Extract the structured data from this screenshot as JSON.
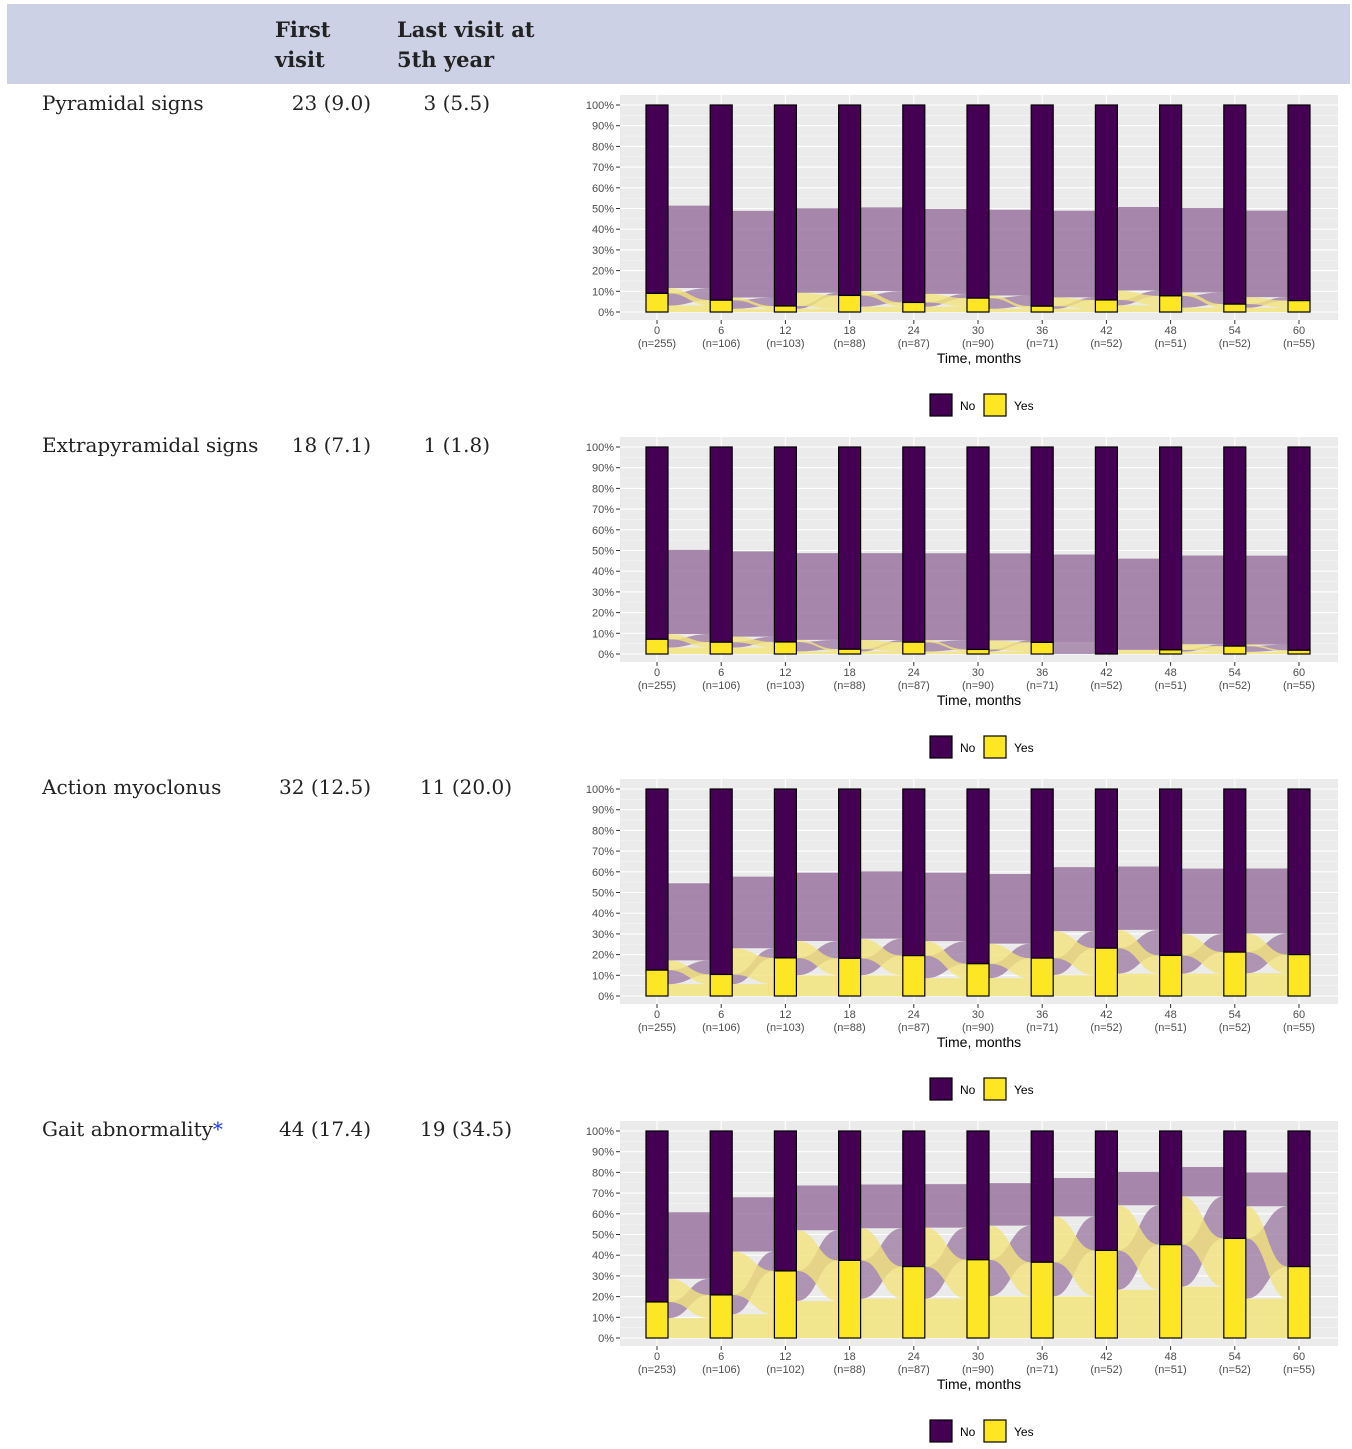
{
  "header": {
    "col1": "First visit",
    "col1_line1": "First",
    "col1_line2": "visit",
    "col2": "Last visit at 5th year",
    "col2_line1": "Last visit at",
    "col2_line2": "5th year"
  },
  "rows": [
    {
      "label": "Pyramidal signs",
      "asterisk": "",
      "first": "23 (9.0)",
      "last": "3 (5.5)"
    },
    {
      "label": "Extrapyramidal signs",
      "asterisk": "",
      "first": "18 (7.1)",
      "last": "1 (1.8)"
    },
    {
      "label": "Action myoclonus",
      "asterisk": "",
      "first": "32 (12.5)",
      "last": "11 (20.0)"
    },
    {
      "label": "Gait abnormality",
      "asterisk": "*",
      "first": "44 (17.4)",
      "last": "19 (34.5)"
    }
  ],
  "colors": {
    "no": "#440154",
    "yes": "#fde725",
    "no_flow": "#9a76a0",
    "yes_flow": "#f2e47d",
    "panel": "#ebebeb",
    "header_bg": "#cdd1e5"
  },
  "chart_data": [
    {
      "type": "bar",
      "stacked": true,
      "flows": true,
      "title": "",
      "xlabel": "Time, months",
      "ylabel": "",
      "ylim": [
        0,
        100
      ],
      "y_ticks": [
        "0%",
        "10%",
        "20%",
        "30%",
        "40%",
        "50%",
        "60%",
        "70%",
        "80%",
        "90%",
        "100%"
      ],
      "categories": [
        "0",
        "6",
        "12",
        "18",
        "24",
        "30",
        "36",
        "42",
        "48",
        "54",
        "60"
      ],
      "n_labels": [
        "(n=255)",
        "(n=106)",
        "(n=103)",
        "(n=88)",
        "(n=87)",
        "(n=90)",
        "(n=71)",
        "(n=52)",
        "(n=51)",
        "(n=52)",
        "(n=55)"
      ],
      "series": [
        {
          "name": "No",
          "values": [
            91,
            94.3,
            97.1,
            92,
            95.4,
            93.3,
            97.2,
            94.2,
            92.2,
            96.2,
            94.5
          ]
        },
        {
          "name": "Yes",
          "values": [
            9,
            5.7,
            2.9,
            8,
            4.6,
            6.7,
            2.8,
            5.8,
            7.8,
            3.8,
            5.5
          ]
        }
      ],
      "legend": [
        "No",
        "Yes"
      ],
      "legend_position": "bottom"
    },
    {
      "type": "bar",
      "stacked": true,
      "flows": true,
      "title": "",
      "xlabel": "Time, months",
      "ylabel": "",
      "ylim": [
        0,
        100
      ],
      "y_ticks": [
        "0%",
        "10%",
        "20%",
        "30%",
        "40%",
        "50%",
        "60%",
        "70%",
        "80%",
        "90%",
        "100%"
      ],
      "categories": [
        "0",
        "6",
        "12",
        "18",
        "24",
        "30",
        "36",
        "42",
        "48",
        "54",
        "60"
      ],
      "n_labels": [
        "(n=255)",
        "(n=106)",
        "(n=103)",
        "(n=88)",
        "(n=87)",
        "(n=90)",
        "(n=71)",
        "(n=52)",
        "(n=51)",
        "(n=52)",
        "(n=55)"
      ],
      "series": [
        {
          "name": "No",
          "values": [
            92.9,
            94.3,
            94.2,
            97.7,
            94.3,
            97.8,
            94.4,
            100,
            98,
            96.2,
            98.2
          ]
        },
        {
          "name": "Yes",
          "values": [
            7.1,
            5.7,
            5.8,
            2.3,
            5.7,
            2.2,
            5.6,
            0,
            2,
            3.8,
            1.8
          ]
        }
      ],
      "legend": [
        "No",
        "Yes"
      ],
      "legend_position": "bottom"
    },
    {
      "type": "bar",
      "stacked": true,
      "flows": true,
      "title": "",
      "xlabel": "Time, months",
      "ylabel": "",
      "ylim": [
        0,
        100
      ],
      "y_ticks": [
        "0%",
        "10%",
        "20%",
        "30%",
        "40%",
        "50%",
        "60%",
        "70%",
        "80%",
        "90%",
        "100%"
      ],
      "categories": [
        "0",
        "6",
        "12",
        "18",
        "24",
        "30",
        "36",
        "42",
        "48",
        "54",
        "60"
      ],
      "n_labels": [
        "(n=255)",
        "(n=106)",
        "(n=103)",
        "(n=88)",
        "(n=87)",
        "(n=90)",
        "(n=71)",
        "(n=52)",
        "(n=51)",
        "(n=52)",
        "(n=55)"
      ],
      "series": [
        {
          "name": "No",
          "values": [
            87.5,
            89.6,
            81.6,
            81.8,
            80.5,
            84.4,
            81.7,
            76.9,
            80.4,
            78.8,
            80
          ]
        },
        {
          "name": "Yes",
          "values": [
            12.5,
            10.4,
            18.4,
            18.2,
            19.5,
            15.6,
            18.3,
            23.1,
            19.6,
            21.2,
            20
          ]
        }
      ],
      "legend": [
        "No",
        "Yes"
      ],
      "legend_position": "bottom"
    },
    {
      "type": "bar",
      "stacked": true,
      "flows": true,
      "title": "",
      "xlabel": "Time, months",
      "ylabel": "",
      "ylim": [
        0,
        100
      ],
      "y_ticks": [
        "0%",
        "10%",
        "20%",
        "30%",
        "40%",
        "50%",
        "60%",
        "70%",
        "80%",
        "90%",
        "100%"
      ],
      "categories": [
        "0",
        "6",
        "12",
        "18",
        "24",
        "30",
        "36",
        "42",
        "48",
        "54",
        "60"
      ],
      "n_labels": [
        "(n=253)",
        "(n=106)",
        "(n=102)",
        "(n=88)",
        "(n=87)",
        "(n=90)",
        "(n=71)",
        "(n=52)",
        "(n=51)",
        "(n=52)",
        "(n=55)"
      ],
      "series": [
        {
          "name": "No",
          "values": [
            82.6,
            79.2,
            67.6,
            62.5,
            65.5,
            62.2,
            63.4,
            57.7,
            54.9,
            51.9,
            65.5
          ]
        },
        {
          "name": "Yes",
          "values": [
            17.4,
            20.8,
            32.4,
            37.5,
            34.5,
            37.8,
            36.6,
            42.3,
            45.1,
            48.1,
            34.5
          ]
        }
      ],
      "legend": [
        "No",
        "Yes"
      ],
      "legend_position": "bottom"
    }
  ]
}
